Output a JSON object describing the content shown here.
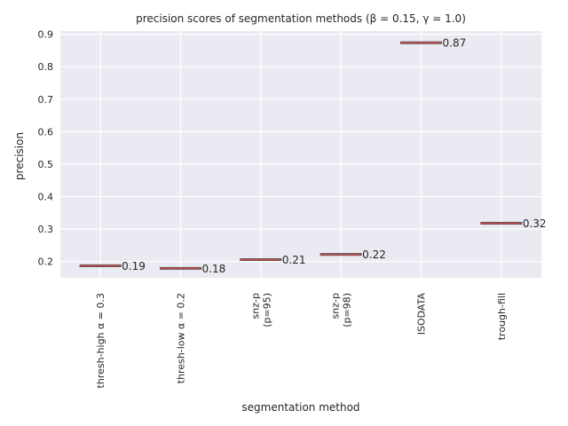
{
  "chart_data": {
    "type": "box",
    "title": "precision scores of segmentation methods (β = 0.15, γ = 1.0)",
    "xlabel": "segmentation method",
    "ylabel": "precision",
    "ylim": [
      0.15,
      0.91
    ],
    "yticks": [
      0.2,
      0.3,
      0.4,
      0.5,
      0.6,
      0.7,
      0.8,
      0.9
    ],
    "ytick_labels": [
      "0.2",
      "0.3",
      "0.4",
      "0.5",
      "0.6",
      "0.7",
      "0.8",
      "0.9"
    ],
    "grid": true,
    "categories": [
      {
        "lines": [
          "thresh-high α = 0.3"
        ]
      },
      {
        "lines": [
          "thresh-low α = 0.2"
        ]
      },
      {
        "lines": [
          "snz-p",
          "(p=95)"
        ]
      },
      {
        "lines": [
          "snz-p",
          "(p=98)"
        ]
      },
      {
        "lines": [
          "ISODATA"
        ]
      },
      {
        "lines": [
          "trough-fill"
        ]
      }
    ],
    "values": [
      0.187,
      0.179,
      0.206,
      0.222,
      0.874,
      0.318
    ],
    "value_labels": [
      "0.19",
      "0.18",
      "0.21",
      "0.22",
      "0.87",
      "0.32"
    ],
    "colors": {
      "background": "#eaeaf2",
      "grid": "#ffffff",
      "median": "#c44e52",
      "box": "#4c4c4c"
    }
  }
}
